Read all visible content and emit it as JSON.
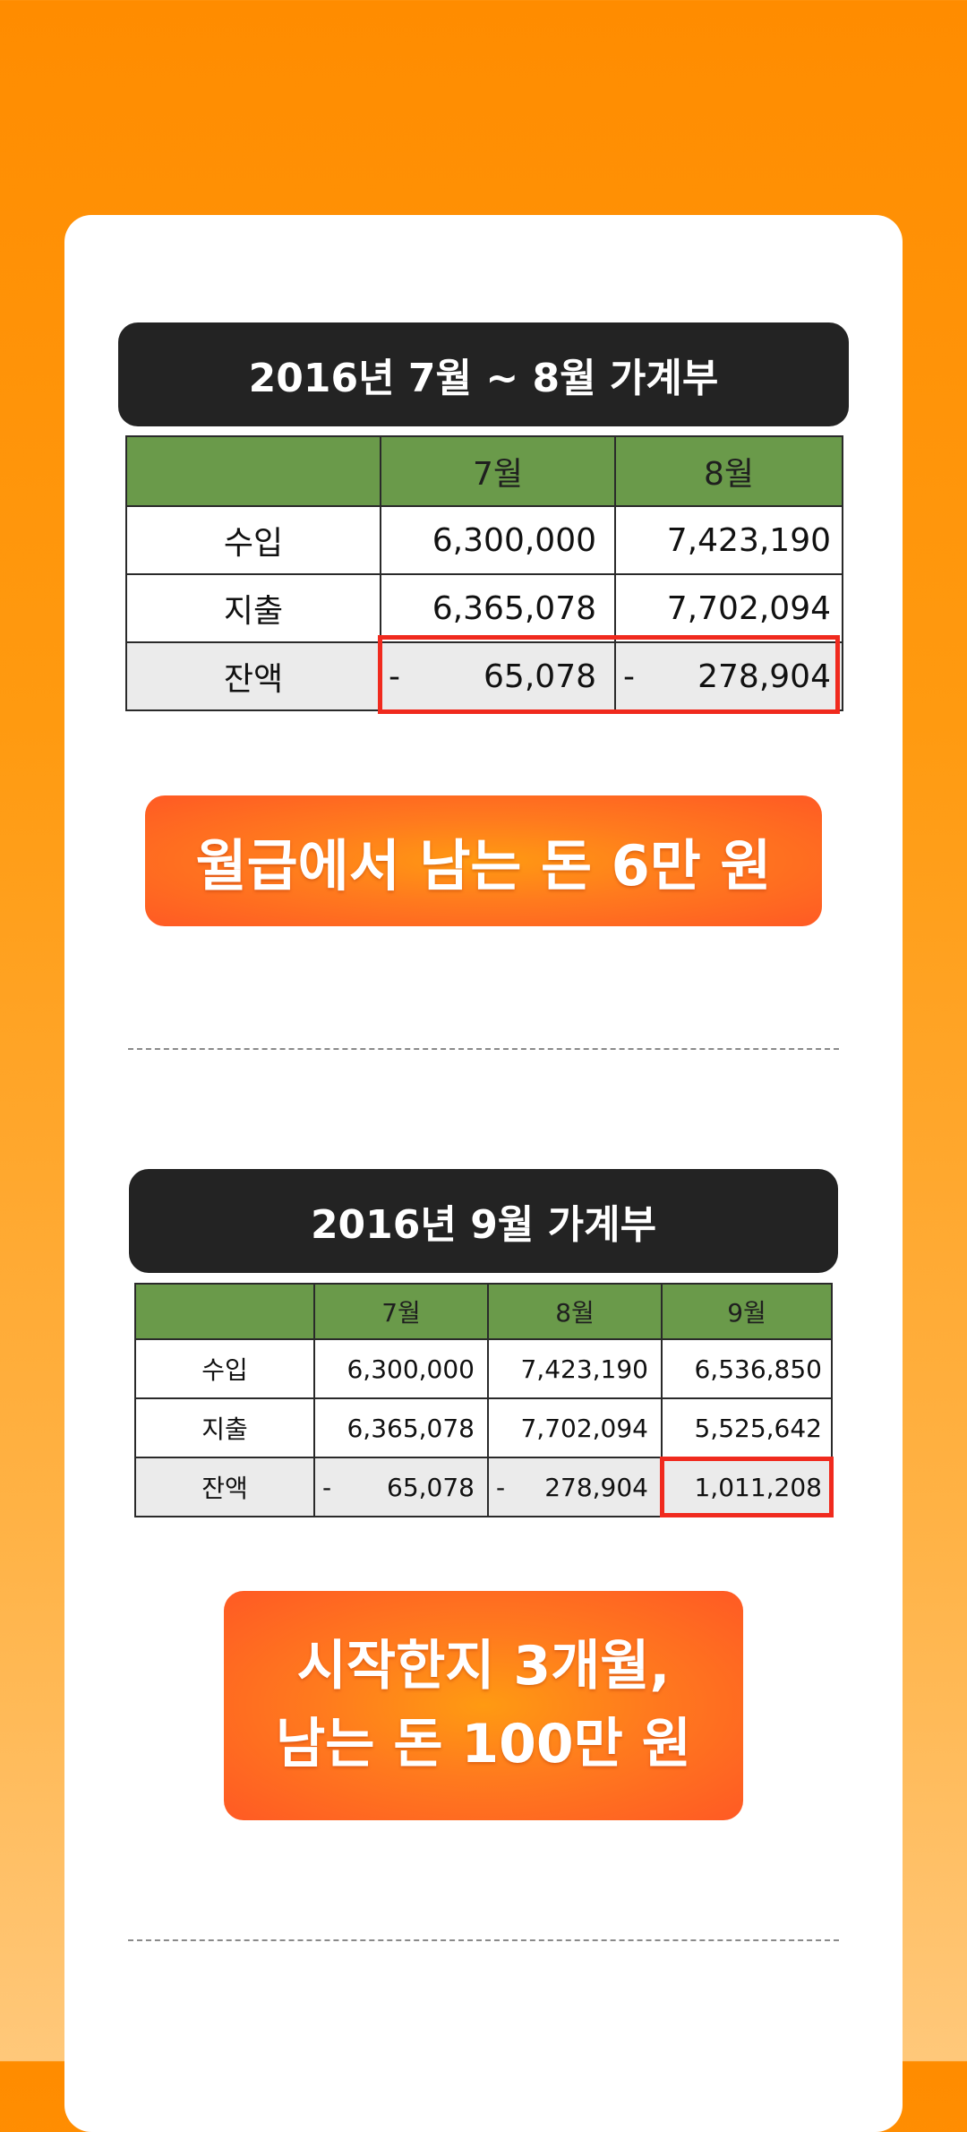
{
  "section1": {
    "title": "2016년 7월 ~ 8월 가계부",
    "table": {
      "columns": [
        "",
        "7월",
        "8월"
      ],
      "rows": [
        {
          "label": "수입",
          "values": [
            "6,300,000",
            "7,423,190"
          ]
        },
        {
          "label": "지출",
          "values": [
            "6,365,078",
            "7,702,094"
          ]
        },
        {
          "label": "잔액",
          "signs": [
            "-",
            "-"
          ],
          "values": [
            "65,078",
            "278,904"
          ]
        }
      ]
    },
    "badge": "월급에서 남는 돈 6만 원"
  },
  "section2": {
    "title": "2016년 9월 가계부",
    "table": {
      "columns": [
        "",
        "7월",
        "8월",
        "9월"
      ],
      "rows": [
        {
          "label": "수입",
          "values": [
            "6,300,000",
            "7,423,190",
            "6,536,850"
          ]
        },
        {
          "label": "지출",
          "values": [
            "6,365,078",
            "7,702,094",
            "5,525,642"
          ]
        },
        {
          "label": "잔액",
          "signs": [
            "-",
            "-",
            ""
          ],
          "values": [
            "65,078",
            "278,904",
            "1,011,208"
          ]
        }
      ]
    },
    "badge_lines": [
      "시작한지 3개월,",
      "남는 돈 100만 원"
    ]
  },
  "colors": {
    "background_top": "#ff8c00",
    "background_bottom": "#ffc87a",
    "title_bar": "#232323",
    "table_header": "#6a9a4a",
    "highlight": "#f02a1e",
    "badge": "#ff5a24"
  }
}
